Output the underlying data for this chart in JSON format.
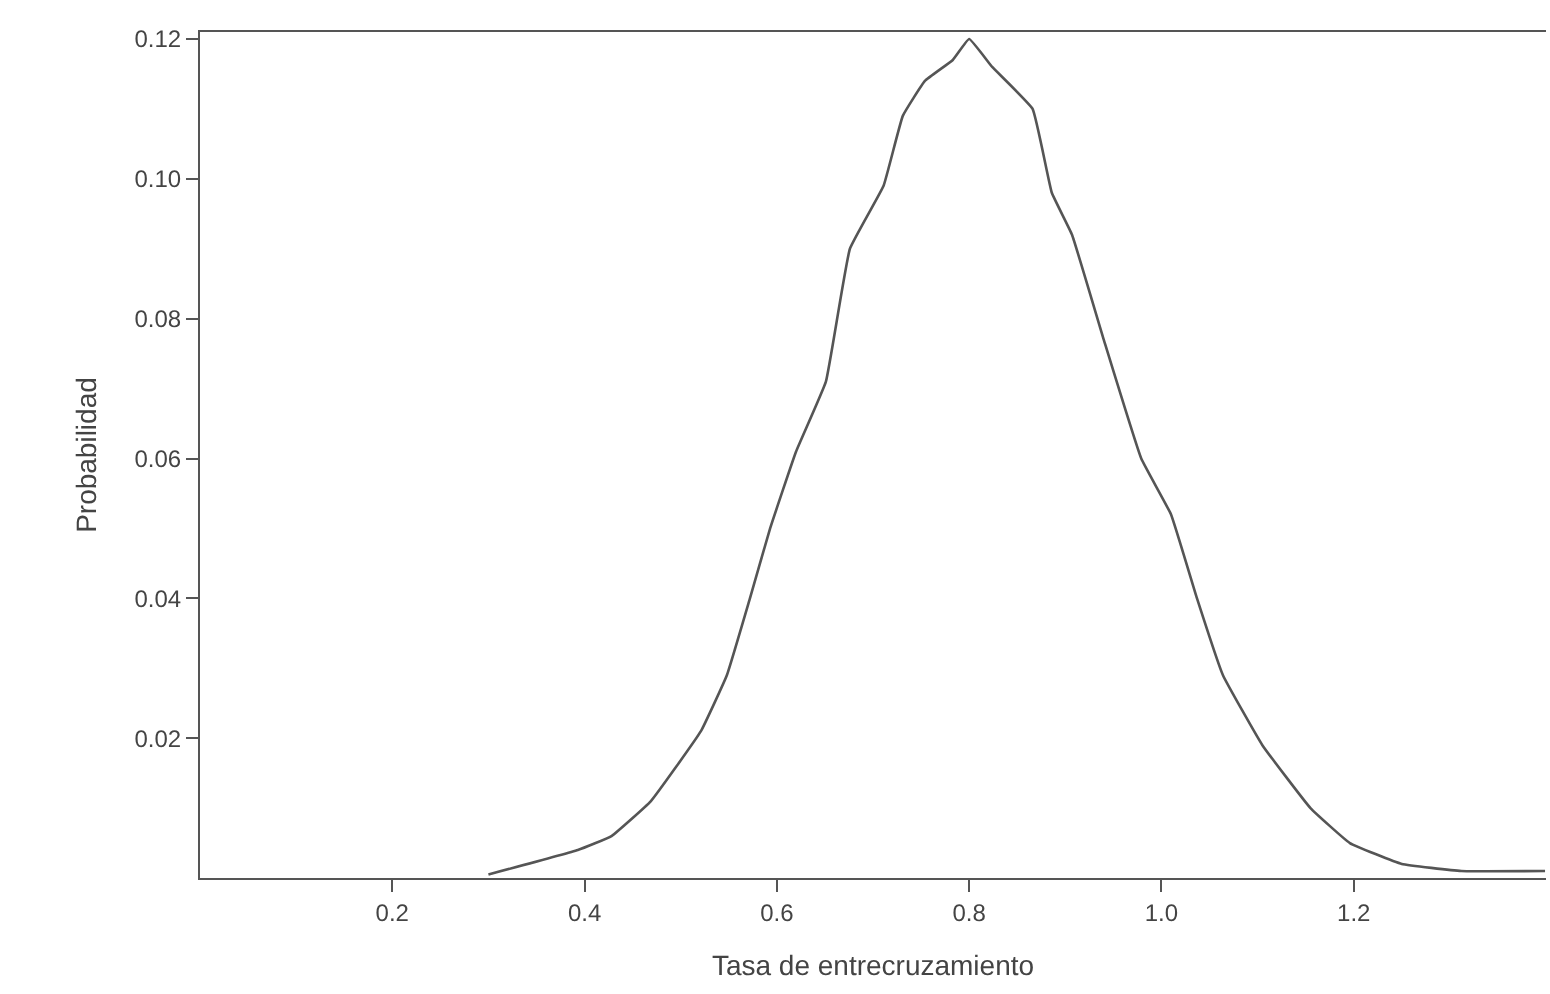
{
  "chart_data": {
    "type": "line",
    "xlabel": "Tasa de entrecruzamiento",
    "ylabel": "Probabilidad",
    "x": [
      0.3,
      0.393,
      0.428,
      0.469,
      0.521,
      0.548,
      0.572,
      0.593,
      0.62,
      0.651,
      0.676,
      0.711,
      0.731,
      0.754,
      0.783,
      0.8,
      0.824,
      0.866,
      0.886,
      0.907,
      0.94,
      0.979,
      1.01,
      1.037,
      1.064,
      1.105,
      1.155,
      1.196,
      1.25,
      1.312,
      1.399
    ],
    "series": [
      {
        "color": "#555555",
        "values": [
          0.0005,
          0.004,
          0.006,
          0.011,
          0.021,
          0.029,
          0.04,
          0.05,
          0.061,
          0.071,
          0.09,
          0.099,
          0.109,
          0.114,
          0.117,
          0.12,
          0.116,
          0.11,
          0.098,
          0.092,
          0.077,
          0.06,
          0.052,
          0.04,
          0.029,
          0.019,
          0.01,
          0.005,
          0.002,
          0.001,
          0.001
        ]
      }
    ],
    "xlim": [
      0,
      1.4
    ],
    "ylim": [
      0,
      0.121
    ],
    "xticks": [
      {
        "value": 0.2,
        "label": "0.2"
      },
      {
        "value": 0.4,
        "label": "0.4"
      },
      {
        "value": 0.6,
        "label": "0.6"
      },
      {
        "value": 0.8,
        "label": "0.8"
      },
      {
        "value": 1.0,
        "label": "1.0"
      },
      {
        "value": 1.2,
        "label": "1.2"
      }
    ],
    "yticks": [
      {
        "value": 0.02,
        "label": "0.02"
      },
      {
        "value": 0.04,
        "label": "0.04"
      },
      {
        "value": 0.06,
        "label": "0.06"
      },
      {
        "value": 0.08,
        "label": "0.08"
      },
      {
        "value": 0.1,
        "label": "0.10"
      },
      {
        "value": 0.12,
        "label": "0.12"
      }
    ],
    "marker": "none",
    "line_style": "solid"
  }
}
